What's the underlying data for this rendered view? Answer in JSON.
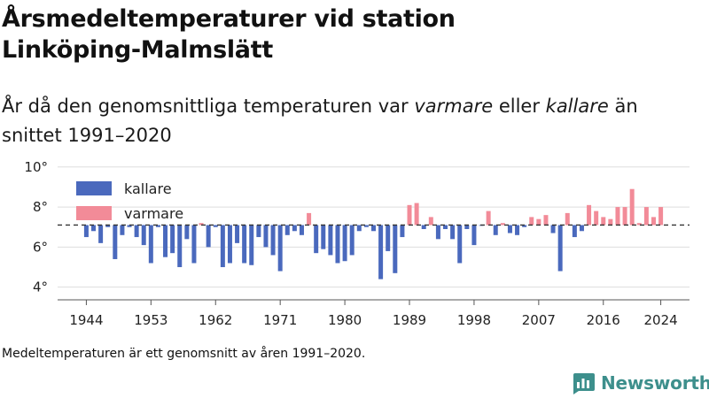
{
  "header": {
    "title": "Årsmedeltemperaturer vid station Linköping-Malmslätt",
    "subtitle_parts": [
      "År då den genomsnittliga temperaturen var ",
      "varmare",
      " eller ",
      "kallare",
      " än snittet 1991–2020"
    ]
  },
  "footer": {
    "note": "Medeltemperaturen är ett genomsnitt av åren 1991–2020.",
    "brand": "Newsworthy"
  },
  "colors": {
    "colder": "#4a69bd",
    "warmer": "#f28b98",
    "brand": "#3d8f8c"
  },
  "chart_data": {
    "type": "bar",
    "title": "Årsmedeltemperaturer vid station Linköping-Malmslätt",
    "xlabel": "",
    "ylabel": "",
    "baseline": 7.1,
    "baseline_style": "dashed",
    "ylim": [
      3.5,
      10.3
    ],
    "xlim": [
      1940,
      2028
    ],
    "y_ticks": [
      4,
      6,
      8,
      10
    ],
    "y_tick_labels": [
      "4°",
      "6°",
      "8°",
      "10°"
    ],
    "x_ticks": [
      1944,
      1953,
      1962,
      1971,
      1980,
      1989,
      1998,
      2007,
      2016,
      2024
    ],
    "legend": {
      "placement": "top-left",
      "entries": [
        "kallare",
        "varmare"
      ]
    },
    "grid": "horizontal",
    "series": [
      {
        "name": "kallare",
        "color": "#4a69bd",
        "description": "år kallare än snittet"
      },
      {
        "name": "varmare",
        "color": "#f28b98",
        "description": "år varmare än snittet"
      }
    ],
    "years": [
      1944,
      1945,
      1946,
      1947,
      1948,
      1949,
      1950,
      1951,
      1952,
      1953,
      1954,
      1955,
      1956,
      1957,
      1958,
      1959,
      1960,
      1961,
      1962,
      1963,
      1964,
      1965,
      1966,
      1967,
      1968,
      1969,
      1970,
      1971,
      1972,
      1973,
      1974,
      1975,
      1976,
      1977,
      1978,
      1979,
      1980,
      1981,
      1982,
      1983,
      1984,
      1985,
      1986,
      1987,
      1988,
      1989,
      1990,
      1991,
      1992,
      1993,
      1994,
      1995,
      1996,
      1997,
      1998,
      1999,
      2000,
      2001,
      2002,
      2003,
      2004,
      2005,
      2006,
      2007,
      2008,
      2009,
      2010,
      2011,
      2012,
      2013,
      2014,
      2015,
      2016,
      2017,
      2018,
      2019,
      2020,
      2021,
      2022,
      2023,
      2024
    ],
    "values": [
      6.5,
      6.8,
      6.2,
      7.0,
      5.4,
      6.6,
      7.0,
      6.5,
      6.1,
      5.2,
      7.0,
      5.5,
      5.7,
      5.0,
      6.4,
      5.2,
      7.2,
      6.0,
      7.0,
      5.0,
      5.2,
      6.2,
      5.2,
      5.1,
      6.5,
      6.0,
      5.6,
      4.8,
      6.6,
      6.8,
      6.6,
      7.7,
      5.7,
      5.9,
      5.6,
      5.2,
      5.3,
      5.6,
      6.8,
      7.0,
      6.8,
      4.4,
      5.8,
      4.7,
      6.5,
      8.1,
      8.2,
      6.9,
      7.5,
      6.4,
      6.9,
      6.4,
      5.2,
      6.9,
      6.1,
      7.1,
      7.8,
      6.6,
      7.2,
      6.7,
      6.6,
      7.0,
      7.5,
      7.4,
      7.6,
      6.7,
      4.8,
      7.7,
      6.5,
      6.8,
      8.1,
      7.8,
      7.5,
      7.4,
      8.0,
      8.0,
      8.9,
      7.2,
      8.0,
      7.5,
      8.0
    ]
  }
}
